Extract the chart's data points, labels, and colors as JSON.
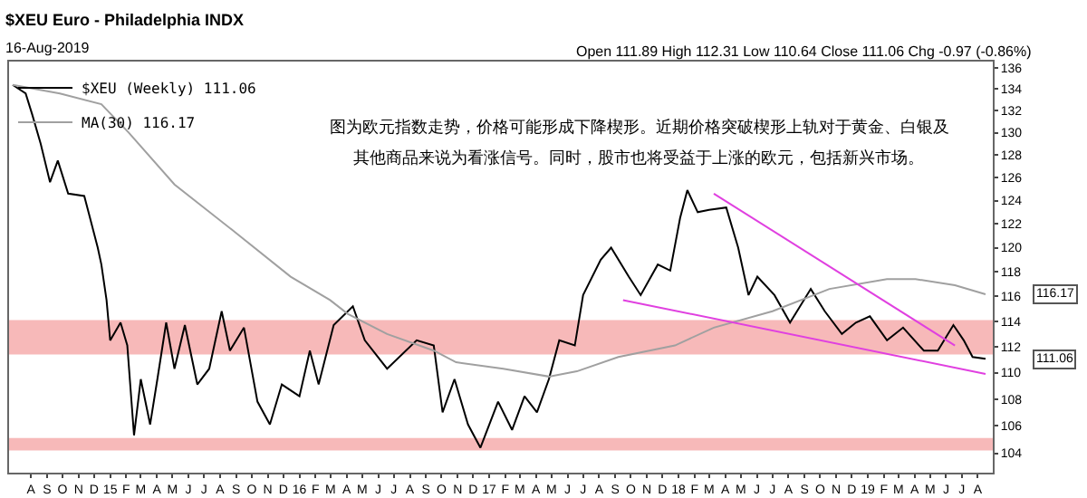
{
  "chart_data": {
    "type": "line",
    "title": "$XEU Euro - Philadelphia INDX",
    "subtitle": "16-Aug-2019",
    "annotations": [
      "Open 111.89 High 112.31 Low 110.64 Close 111.06 Chg -0.97 (-0.86%)",
      "图为欧元指数走势，价格可能形成下降楔形。近期价格突破楔形上轨对于黄金、白银及",
      "其他商品来说为看涨信号。同时，股市也将受益于上涨的欧元，包括新兴市场。",
      "116.17",
      "111.06"
    ],
    "log": true,
    "legend": "top left",
    "xlim": [
      "2014-06-20",
      "2019-08-30"
    ],
    "ylim": [
      102.6,
      136.6
    ],
    "yticks": [
      104,
      106,
      108,
      110,
      112,
      114,
      116,
      118,
      120,
      122,
      124,
      126,
      128,
      130,
      132,
      134,
      136
    ],
    "xticks": [
      {
        "value": "2014-08-01",
        "label": "A"
      },
      {
        "value": "2014-09-01",
        "label": "S"
      },
      {
        "value": "2014-10-01",
        "label": "O"
      },
      {
        "value": "2014-11-01",
        "label": "N"
      },
      {
        "value": "2014-12-01",
        "label": "D"
      },
      {
        "value": "2015-01-01",
        "label": "15"
      },
      {
        "value": "2015-02-01",
        "label": "F"
      },
      {
        "value": "2015-03-01",
        "label": "M"
      },
      {
        "value": "2015-04-01",
        "label": "A"
      },
      {
        "value": "2015-05-01",
        "label": "M"
      },
      {
        "value": "2015-06-01",
        "label": "J"
      },
      {
        "value": "2015-07-01",
        "label": "J"
      },
      {
        "value": "2015-08-01",
        "label": "A"
      },
      {
        "value": "2015-09-01",
        "label": "S"
      },
      {
        "value": "2015-10-01",
        "label": "O"
      },
      {
        "value": "2015-11-01",
        "label": "N"
      },
      {
        "value": "2015-12-01",
        "label": "D"
      },
      {
        "value": "2016-01-01",
        "label": "16"
      },
      {
        "value": "2016-02-01",
        "label": "F"
      },
      {
        "value": "2016-03-01",
        "label": "M"
      },
      {
        "value": "2016-04-01",
        "label": "A"
      },
      {
        "value": "2016-05-01",
        "label": "M"
      },
      {
        "value": "2016-06-01",
        "label": "J"
      },
      {
        "value": "2016-07-01",
        "label": "J"
      },
      {
        "value": "2016-08-01",
        "label": "A"
      },
      {
        "value": "2016-09-01",
        "label": "S"
      },
      {
        "value": "2016-10-01",
        "label": "O"
      },
      {
        "value": "2016-11-01",
        "label": "N"
      },
      {
        "value": "2016-12-01",
        "label": "D"
      },
      {
        "value": "2017-01-01",
        "label": "17"
      },
      {
        "value": "2017-02-01",
        "label": "F"
      },
      {
        "value": "2017-03-01",
        "label": "M"
      },
      {
        "value": "2017-04-01",
        "label": "A"
      },
      {
        "value": "2017-05-01",
        "label": "M"
      },
      {
        "value": "2017-06-01",
        "label": "J"
      },
      {
        "value": "2017-07-01",
        "label": "J"
      },
      {
        "value": "2017-08-01",
        "label": "A"
      },
      {
        "value": "2017-09-01",
        "label": "S"
      },
      {
        "value": "2017-10-01",
        "label": "O"
      },
      {
        "value": "2017-11-01",
        "label": "N"
      },
      {
        "value": "2017-12-01",
        "label": "D"
      },
      {
        "value": "2018-01-01",
        "label": "18"
      },
      {
        "value": "2018-02-01",
        "label": "F"
      },
      {
        "value": "2018-03-01",
        "label": "M"
      },
      {
        "value": "2018-04-01",
        "label": "A"
      },
      {
        "value": "2018-05-01",
        "label": "M"
      },
      {
        "value": "2018-06-01",
        "label": "J"
      },
      {
        "value": "2018-07-01",
        "label": "J"
      },
      {
        "value": "2018-08-01",
        "label": "A"
      },
      {
        "value": "2018-09-01",
        "label": "S"
      },
      {
        "value": "2018-10-01",
        "label": "O"
      },
      {
        "value": "2018-11-01",
        "label": "N"
      },
      {
        "value": "2018-12-01",
        "label": "D"
      },
      {
        "value": "2019-01-01",
        "label": "19"
      },
      {
        "value": "2019-02-01",
        "label": "F"
      },
      {
        "value": "2019-03-01",
        "label": "M"
      },
      {
        "value": "2019-04-01",
        "label": "A"
      },
      {
        "value": "2019-05-01",
        "label": "M"
      },
      {
        "value": "2019-06-01",
        "label": "J"
      },
      {
        "value": "2019-07-01",
        "label": "J"
      },
      {
        "value": "2019-08-01",
        "label": "A"
      }
    ],
    "bands": [
      {
        "axis": "y",
        "from": 111.4,
        "to": 114.1,
        "color": "#f08080"
      },
      {
        "axis": "y",
        "from": 104.2,
        "to": 105.1,
        "color": "#f08080"
      }
    ],
    "series": [
      {
        "name": "$XEU (Weekly) 111.06",
        "color": "#000000",
        "x": [
          "2014-06-27",
          "2014-07-22",
          "2014-08-04",
          "2014-08-20",
          "2014-09-07",
          "2014-09-22",
          "2014-10-12",
          "2014-11-12",
          "2014-11-22",
          "2014-12-08",
          "2014-12-15",
          "2014-12-25",
          "2015-01-01",
          "2015-01-21",
          "2015-02-03",
          "2015-02-16",
          "2015-03-01",
          "2015-03-19",
          "2015-04-02",
          "2015-04-19",
          "2015-05-05",
          "2015-05-25",
          "2015-06-18",
          "2015-07-11",
          "2015-08-04",
          "2015-08-20",
          "2015-09-16",
          "2015-10-12",
          "2015-11-05",
          "2015-11-28",
          "2016-01-01",
          "2016-01-21",
          "2016-02-07",
          "2016-03-07",
          "2016-04-13",
          "2016-05-06",
          "2016-06-18",
          "2016-08-14",
          "2016-09-16",
          "2016-10-03",
          "2016-10-26",
          "2016-11-21",
          "2016-12-15",
          "2017-01-18",
          "2017-02-14",
          "2017-03-10",
          "2017-04-03",
          "2017-04-26",
          "2017-05-16",
          "2017-06-15",
          "2017-07-01",
          "2017-08-04",
          "2017-08-24",
          "2017-09-27",
          "2017-10-20",
          "2017-11-22",
          "2017-12-16",
          "2018-01-04",
          "2018-01-18",
          "2018-02-07",
          "2018-03-01",
          "2018-04-03",
          "2018-04-26",
          "2018-05-16",
          "2018-06-02",
          "2018-07-05",
          "2018-08-04",
          "2018-09-13",
          "2018-10-10",
          "2018-11-12",
          "2018-12-09",
          "2019-01-05",
          "2019-02-07",
          "2019-03-10",
          "2019-04-19",
          "2019-05-16",
          "2019-06-15",
          "2019-07-05",
          "2019-07-22",
          "2019-08-16"
        ],
        "values": [
          134.4,
          133.6,
          131.6,
          129,
          125.6,
          127.5,
          124.6,
          124.4,
          122.7,
          120,
          118.6,
          115.7,
          112.5,
          113.9,
          112.1,
          105.3,
          109.5,
          106.1,
          109.5,
          113.9,
          110.3,
          113.7,
          109.1,
          110.3,
          114.8,
          111.7,
          113.5,
          107.8,
          106.1,
          109.1,
          108.2,
          111.7,
          109.1,
          113.7,
          115.2,
          112.5,
          110.3,
          112.5,
          112.1,
          107,
          109.5,
          106.1,
          104.4,
          107.8,
          105.7,
          108.2,
          107,
          109.5,
          112.5,
          112.1,
          116.1,
          119,
          120,
          117.6,
          116.1,
          118.6,
          118.1,
          122.5,
          124.9,
          123,
          123.2,
          123.4,
          120,
          116.1,
          117.6,
          116.1,
          113.9,
          116.6,
          114.8,
          113,
          113.9,
          114.4,
          112.5,
          113.5,
          111.7,
          111.7,
          113.7,
          112.5,
          111.2,
          111.06
        ]
      },
      {
        "name": "MA(30) 116.17",
        "color": "#a0a0a0",
        "x": [
          "2014-06-27",
          "2014-09-26",
          "2014-12-15",
          "2015-02-06",
          "2015-05-05",
          "2015-08-24",
          "2015-12-15",
          "2016-02-29",
          "2016-04-03",
          "2016-06-18",
          "2016-09-16",
          "2016-10-29",
          "2017-01-28",
          "2017-04-26",
          "2017-06-19",
          "2017-09-07",
          "2017-12-25",
          "2018-03-10",
          "2018-07-01",
          "2018-10-19",
          "2019-02-07",
          "2019-04-03",
          "2019-06-18",
          "2019-08-16"
        ],
        "values": [
          134.4,
          133.6,
          132.6,
          130,
          125.4,
          121.5,
          117.6,
          115.7,
          114.6,
          113,
          111.7,
          110.8,
          110.3,
          109.7,
          110.1,
          111.2,
          112.1,
          113.5,
          114.8,
          116.6,
          117.4,
          117.4,
          116.9,
          116.17
        ]
      },
      {
        "type": "line",
        "color": "#e040e0",
        "x": [
          "2018-03-10",
          "2019-06-18"
        ],
        "values": [
          124.6,
          112.1
        ]
      },
      {
        "type": "line",
        "color": "#e040e0",
        "x": [
          "2017-09-16",
          "2019-08-16"
        ],
        "values": [
          115.7,
          109.9
        ]
      }
    ]
  }
}
